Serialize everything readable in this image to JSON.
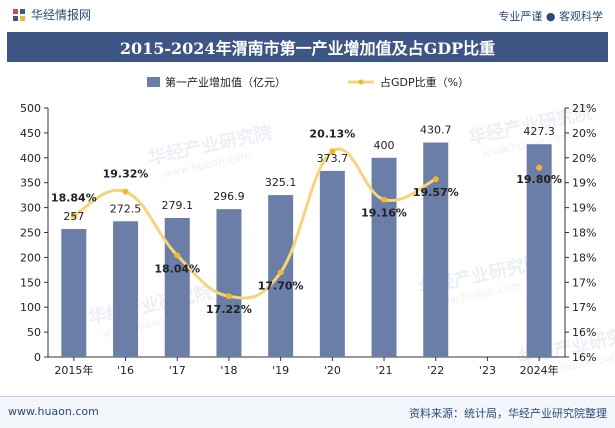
{
  "header": {
    "brand": "华经情报网",
    "tagline": "专业严谨 ● 客观科学"
  },
  "title": "2015-2024年渭南市第一产业增加值及占GDP比重",
  "footer": {
    "website": "www.huaon.com",
    "source": "资料来源：统计局，华经产业研究院整理"
  },
  "watermark": {
    "name": "华经产业研究院",
    "url": "www.huaon.com"
  },
  "colors": {
    "bar": "#6b7ea8",
    "line": "#f5d57a",
    "marker": "#f2b72c",
    "title_bg": "#3e5686",
    "text": "#222222"
  },
  "chart_data": {
    "type": "bar",
    "categories": [
      "2015年",
      "'16",
      "'17",
      "'18",
      "'19",
      "'20",
      "'21",
      "'22",
      "'23",
      "2024年"
    ],
    "series": [
      {
        "name": "第一产业增加值（亿元）",
        "type": "bar",
        "axis": "left",
        "values": [
          257,
          272.5,
          279.1,
          296.9,
          325.1,
          373.7,
          400,
          430.7,
          null,
          427.3
        ],
        "labels": [
          "257",
          "272.5",
          "279.1",
          "296.9",
          "325.1",
          "373.7",
          "400",
          "430.7",
          "",
          "427.3"
        ]
      },
      {
        "name": "占GDP比重（%）",
        "type": "line",
        "axis": "right",
        "values": [
          18.84,
          19.32,
          18.04,
          17.22,
          17.7,
          20.13,
          19.16,
          19.57,
          null,
          19.8
        ],
        "labels": [
          "18.84%",
          "19.32%",
          "18.04%",
          "17.22%",
          "17.70%",
          "20.13%",
          "19.16%",
          "19.57%",
          "",
          "19.80%"
        ]
      }
    ],
    "y_left": {
      "min": 0,
      "max": 500,
      "ticks": [
        "0",
        "50",
        "100",
        "150",
        "200",
        "250",
        "300",
        "350",
        "400",
        "450",
        "500"
      ]
    },
    "y_right": {
      "min": 16,
      "max": 21,
      "ticks": [
        "16%",
        "16%",
        "17%",
        "17%",
        "18%",
        "18%",
        "19%",
        "19%",
        "20%",
        "20%",
        "21%"
      ]
    },
    "legend_position": "top",
    "grid": false
  }
}
